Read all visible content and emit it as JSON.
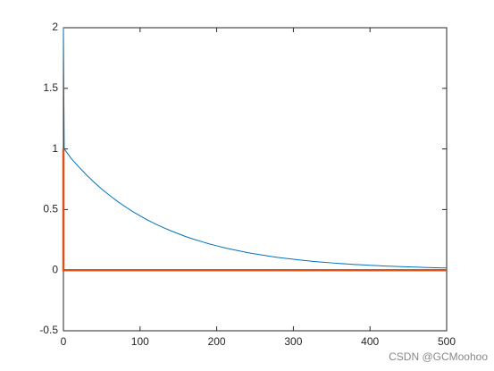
{
  "chart_data": {
    "type": "line",
    "series": [
      {
        "color": "#0072bd",
        "x": [
          0,
          1,
          10,
          20,
          30,
          40,
          50,
          60,
          70,
          80,
          90,
          100,
          110,
          120,
          130,
          140,
          150,
          160,
          170,
          180,
          190,
          200,
          210,
          220,
          230,
          240,
          250,
          260,
          270,
          280,
          290,
          300,
          310,
          320,
          330,
          340,
          350,
          360,
          370,
          380,
          390,
          400,
          410,
          420,
          430,
          440,
          450,
          460,
          470,
          480,
          490,
          500
        ],
        "values": [
          2,
          1,
          0.923,
          0.852,
          0.786,
          0.725,
          0.669,
          0.618,
          0.57,
          0.526,
          0.485,
          0.448,
          0.413,
          0.381,
          0.352,
          0.325,
          0.3,
          0.276,
          0.255,
          0.236,
          0.217,
          0.201,
          0.185,
          0.171,
          0.158,
          0.145,
          0.134,
          0.124,
          0.114,
          0.105,
          0.097,
          0.09,
          0.083,
          0.076,
          0.07,
          0.065,
          0.06,
          0.055,
          0.051,
          0.047,
          0.044,
          0.04,
          0.037,
          0.034,
          0.032,
          0.029,
          0.027,
          0.025,
          0.023,
          0.021,
          0.019,
          0.018
        ]
      },
      {
        "color": "#d95319",
        "x": [
          0,
          0,
          500
        ],
        "values": [
          1,
          0,
          0
        ]
      }
    ],
    "xlim": [
      0,
      500
    ],
    "xticks": [
      0,
      100,
      200,
      300,
      400,
      500
    ],
    "ylim": [
      -0.5,
      2
    ],
    "yticks": [
      -0.5,
      0,
      0.5,
      1,
      1.5,
      2
    ],
    "watermark": "CSDN @GCMoohoo"
  }
}
